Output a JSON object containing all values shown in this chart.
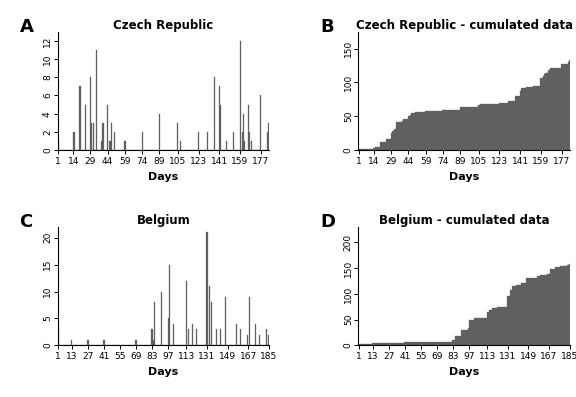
{
  "panel_A": {
    "title": "Czech Republic",
    "label": "A",
    "xlabel": "Days",
    "xticks": [
      1,
      14,
      29,
      44,
      59,
      74,
      89,
      105,
      123,
      141,
      159,
      177
    ],
    "ylim": [
      0,
      13
    ],
    "yticks": [
      0,
      2,
      4,
      6,
      8,
      10,
      12
    ],
    "days": [
      1,
      2,
      3,
      4,
      5,
      6,
      7,
      8,
      9,
      10,
      11,
      12,
      13,
      14,
      15,
      16,
      17,
      18,
      19,
      20,
      21,
      22,
      23,
      24,
      25,
      26,
      27,
      28,
      29,
      30,
      31,
      32,
      33,
      34,
      35,
      36,
      37,
      38,
      39,
      40,
      41,
      42,
      43,
      44,
      45,
      46,
      47,
      48,
      49,
      50,
      51,
      52,
      53,
      54,
      55,
      56,
      57,
      58,
      59,
      60,
      61,
      62,
      63,
      64,
      65,
      66,
      67,
      68,
      69,
      70,
      71,
      72,
      73,
      74,
      75,
      76,
      77,
      78,
      79,
      80,
      81,
      82,
      83,
      84,
      85,
      86,
      87,
      88,
      89,
      90,
      91,
      92,
      93,
      94,
      95,
      96,
      97,
      98,
      99,
      100,
      101,
      102,
      103,
      104,
      105,
      106,
      107,
      108,
      109,
      110,
      111,
      112,
      113,
      114,
      115,
      116,
      117,
      118,
      119,
      120,
      121,
      122,
      123,
      124,
      125,
      126,
      127,
      128,
      129,
      130,
      131,
      132,
      133,
      134,
      135,
      136,
      137,
      138,
      139,
      140,
      141,
      142,
      143,
      144,
      145,
      146,
      147,
      148,
      149,
      150,
      151,
      152,
      153,
      154,
      155,
      156,
      157,
      158,
      159,
      160,
      161,
      162,
      163,
      164,
      165,
      166,
      167,
      168,
      169,
      170,
      171,
      172,
      173,
      174,
      175,
      176,
      177,
      178,
      179,
      180,
      181,
      182,
      183,
      184
    ],
    "values": [
      1,
      0,
      0,
      0,
      0,
      0,
      0,
      0,
      0,
      0,
      0,
      0,
      0,
      2,
      2,
      0,
      0,
      0,
      0,
      7,
      0,
      0,
      0,
      0,
      5,
      0,
      0,
      0,
      8,
      3,
      0,
      3,
      0,
      11,
      0,
      0,
      0,
      0,
      1,
      3,
      0,
      0,
      0,
      5,
      0,
      1,
      3,
      0,
      0,
      2,
      0,
      0,
      0,
      0,
      0,
      0,
      0,
      0,
      1,
      0,
      0,
      0,
      0,
      0,
      0,
      0,
      0,
      0,
      0,
      0,
      0,
      0,
      0,
      2,
      0,
      0,
      0,
      0,
      0,
      0,
      0,
      0,
      0,
      0,
      0,
      0,
      0,
      0,
      4,
      0,
      0,
      0,
      0,
      0,
      0,
      0,
      0,
      0,
      0,
      0,
      0,
      0,
      0,
      0,
      3,
      0,
      1,
      0,
      0,
      0,
      0,
      0,
      0,
      0,
      0,
      0,
      0,
      0,
      0,
      0,
      0,
      0,
      2,
      0,
      0,
      0,
      0,
      0,
      0,
      0,
      2,
      0,
      0,
      0,
      0,
      0,
      8,
      0,
      0,
      0,
      7,
      5,
      0,
      0,
      0,
      0,
      1,
      0,
      0,
      0,
      0,
      0,
      2,
      0,
      0,
      0,
      0,
      0,
      12,
      0,
      2,
      4,
      1,
      0,
      0,
      5,
      2,
      0,
      1,
      0,
      0,
      0,
      0,
      0,
      0,
      0,
      6,
      0,
      0,
      0,
      0,
      0,
      2,
      3
    ]
  },
  "panel_B": {
    "title": "Czech Republic - cumulated data",
    "label": "B",
    "xlabel": "Days",
    "xticks": [
      1,
      14,
      29,
      44,
      59,
      74,
      89,
      105,
      123,
      141,
      159,
      177
    ],
    "ylim": [
      0,
      175
    ],
    "yticks": [
      0,
      50,
      100,
      150
    ]
  },
  "panel_C": {
    "title": "Belgium",
    "label": "C",
    "xlabel": "Days",
    "xticks": [
      1,
      13,
      27,
      41,
      55,
      69,
      83,
      97,
      113,
      131,
      149,
      167,
      185
    ],
    "ylim": [
      0,
      22
    ],
    "yticks": [
      0,
      5,
      10,
      15,
      20
    ],
    "days": [
      1,
      2,
      3,
      4,
      5,
      6,
      7,
      8,
      9,
      10,
      11,
      12,
      13,
      14,
      15,
      16,
      17,
      18,
      19,
      20,
      21,
      22,
      23,
      24,
      25,
      26,
      27,
      28,
      29,
      30,
      31,
      32,
      33,
      34,
      35,
      36,
      37,
      38,
      39,
      40,
      41,
      42,
      43,
      44,
      45,
      46,
      47,
      48,
      49,
      50,
      51,
      52,
      53,
      54,
      55,
      56,
      57,
      58,
      59,
      60,
      61,
      62,
      63,
      64,
      65,
      66,
      67,
      68,
      69,
      70,
      71,
      72,
      73,
      74,
      75,
      76,
      77,
      78,
      79,
      80,
      81,
      82,
      83,
      84,
      85,
      86,
      87,
      88,
      89,
      90,
      91,
      92,
      93,
      94,
      95,
      96,
      97,
      98,
      99,
      100,
      101,
      102,
      103,
      104,
      105,
      106,
      107,
      108,
      109,
      110,
      111,
      112,
      113,
      114,
      115,
      116,
      117,
      118,
      119,
      120,
      121,
      122,
      123,
      124,
      125,
      126,
      127,
      128,
      129,
      130,
      131,
      132,
      133,
      134,
      135,
      136,
      137,
      138,
      139,
      140,
      141,
      142,
      143,
      144,
      145,
      146,
      147,
      148,
      149,
      150,
      151,
      152,
      153,
      154,
      155,
      156,
      157,
      158,
      159,
      160,
      161,
      162,
      163,
      164,
      165,
      166,
      167,
      168,
      169,
      170,
      171,
      172,
      173,
      174,
      175,
      176,
      177,
      178,
      179,
      180,
      181,
      182,
      183,
      184,
      185
    ],
    "values": [
      3,
      0,
      0,
      0,
      0,
      0,
      0,
      0,
      0,
      0,
      0,
      0,
      1,
      0,
      0,
      0,
      0,
      0,
      0,
      0,
      0,
      0,
      0,
      0,
      0,
      0,
      1,
      0,
      0,
      0,
      0,
      0,
      0,
      0,
      0,
      0,
      0,
      0,
      0,
      0,
      1,
      0,
      0,
      0,
      0,
      0,
      0,
      0,
      0,
      0,
      0,
      0,
      0,
      0,
      0,
      0,
      0,
      0,
      0,
      0,
      0,
      0,
      0,
      0,
      0,
      0,
      0,
      0,
      1,
      0,
      0,
      0,
      0,
      0,
      0,
      0,
      0,
      0,
      0,
      0,
      0,
      0,
      3,
      1,
      8,
      0,
      0,
      0,
      0,
      0,
      10,
      0,
      0,
      0,
      0,
      0,
      5,
      15,
      0,
      0,
      0,
      4,
      0,
      0,
      0,
      0,
      0,
      0,
      0,
      0,
      0,
      0,
      12,
      0,
      3,
      0,
      0,
      4,
      0,
      0,
      0,
      3,
      0,
      0,
      0,
      0,
      0,
      0,
      0,
      0,
      21,
      0,
      11,
      0,
      8,
      0,
      0,
      0,
      3,
      0,
      0,
      0,
      3,
      0,
      0,
      0,
      9,
      0,
      0,
      0,
      0,
      0,
      0,
      0,
      0,
      0,
      4,
      0,
      0,
      3,
      0,
      0,
      0,
      0,
      0,
      2,
      0,
      9,
      0,
      0,
      0,
      0,
      4,
      0,
      0,
      0,
      2,
      0,
      0,
      0,
      0,
      0,
      3,
      0,
      2
    ]
  },
  "panel_D": {
    "title": "Belgium - cumulated data",
    "label": "D",
    "xlabel": "Days",
    "xticks": [
      1,
      13,
      27,
      41,
      55,
      69,
      83,
      97,
      113,
      131,
      149,
      167,
      185
    ],
    "ylim": [
      0,
      230
    ],
    "yticks": [
      0,
      50,
      100,
      150,
      200
    ]
  },
  "bar_color": "#606060",
  "bg_color": "#ffffff",
  "label_fontsize": 13,
  "title_fontsize": 8.5,
  "tick_fontsize": 6.5,
  "axis_label_fontsize": 8
}
